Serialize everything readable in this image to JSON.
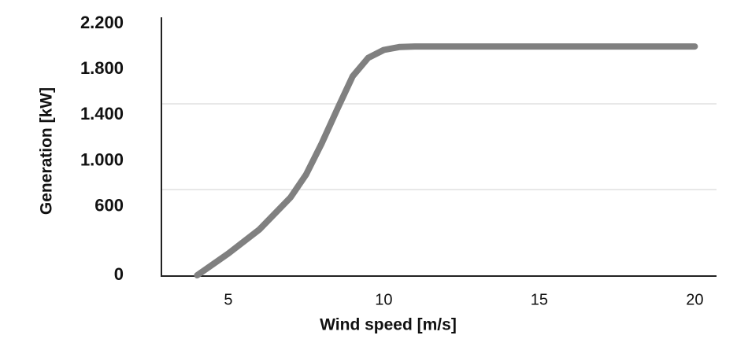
{
  "chart_data": {
    "type": "line",
    "x_label": "Wind speed [m/s]",
    "y_label": "Generation [kW]",
    "x": [
      4,
      5,
      6,
      7,
      7.5,
      8,
      8.5,
      9,
      9.5,
      10,
      10.5,
      11,
      12,
      15,
      20
    ],
    "series": [
      {
        "color": "#808080",
        "values": [
          0,
          190,
          400,
          680,
          880,
          1150,
          1450,
          1740,
          1900,
          1970,
          1995,
          2000,
          2000,
          2000,
          2000
        ]
      }
    ],
    "xlim": [
      2.85,
      20.7
    ],
    "xticks": [
      5,
      10,
      15,
      20
    ],
    "ylim": [
      0,
      2200
    ],
    "yticks": [
      0,
      600,
      {
        "value": 1000,
        "label": "1.000"
      },
      {
        "value": 1400,
        "label": "1.400"
      },
      {
        "value": 1800,
        "label": "1.800"
      },
      {
        "value": 2200,
        "label": "2.200"
      }
    ]
  }
}
